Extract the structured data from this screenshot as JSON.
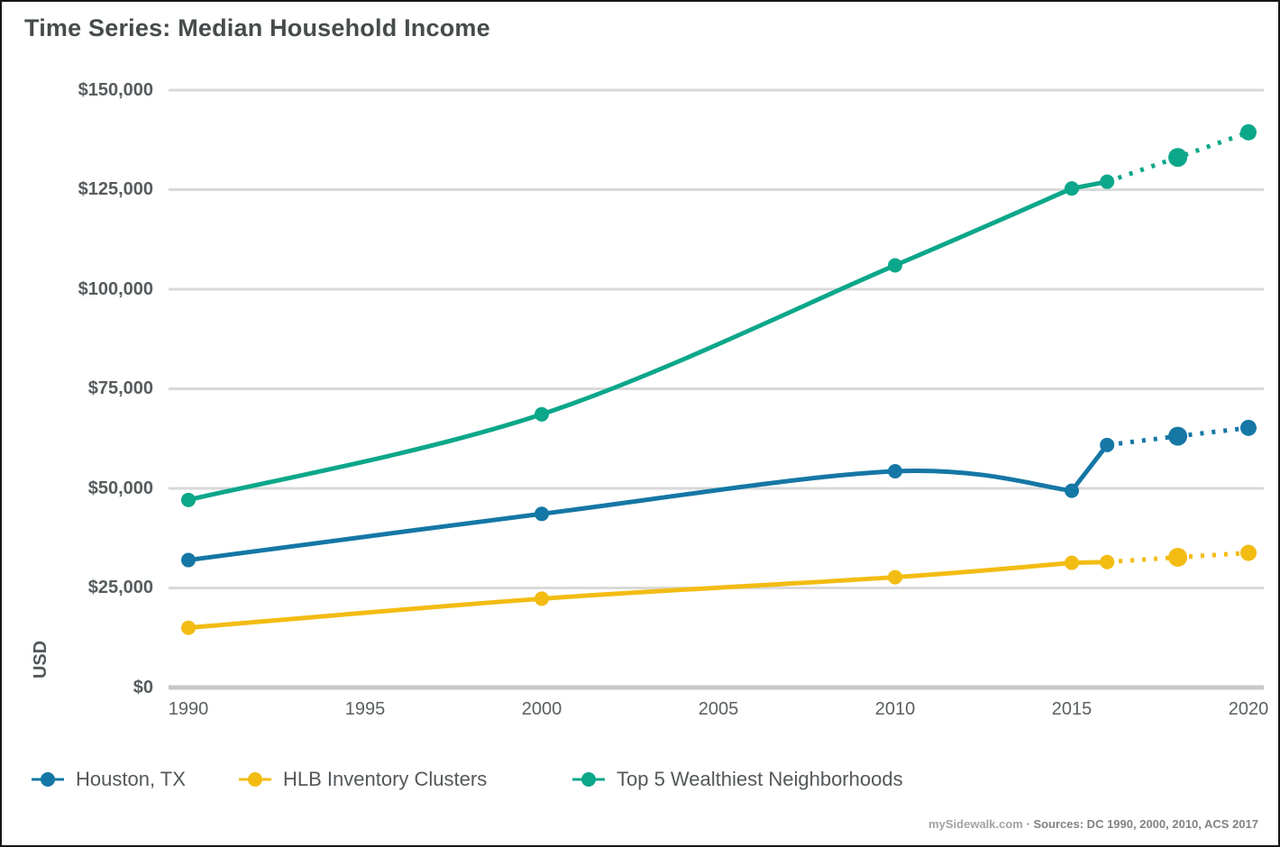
{
  "title": "Time Series: Median Household Income",
  "y_axis": {
    "title": "USD",
    "tick_labels": [
      "$150,000",
      "$125,000",
      "$100,000",
      "$75,000",
      "$50,000",
      "$25,000",
      "$0"
    ]
  },
  "x_axis": {
    "tick_labels": [
      "1990",
      "1995",
      "2000",
      "2005",
      "2010",
      "2015",
      "2020"
    ]
  },
  "legend": {
    "items": [
      {
        "label": "Houston, TX"
      },
      {
        "label": "HLB Inventory Clusters"
      },
      {
        "label": "Top 5 Wealthiest Neighborhoods"
      }
    ]
  },
  "source": {
    "brand": "mySidewalk.com",
    "separator": " · ",
    "text": "Sources: DC 1990, 2000, 2010, ACS 2017"
  },
  "colors": {
    "houston_blue": "#1577a5",
    "hlb_yellow": "#f3bc13",
    "top5_green": "#0ca78a",
    "gridline": "#d9d9d9",
    "zero_line": "#c7c7c7",
    "title_text": "#464b4c",
    "axis_text": "#565c5e"
  },
  "chart_data": {
    "type": "line",
    "title": "Time Series: Median Household Income",
    "xlabel": "",
    "ylabel": "USD",
    "ylim": [
      0,
      150000
    ],
    "y_tick_step": 25000,
    "x_ticks": [
      1990,
      1995,
      2000,
      2005,
      2010,
      2015,
      2020
    ],
    "grid": "horizontal",
    "legend_position": "bottom",
    "x": [
      1990,
      2000,
      2010,
      2015,
      2016,
      2018,
      2020
    ],
    "projection_note": "values after 2016 drawn as dotted (projected) segments",
    "series": [
      {
        "name": "Houston, TX",
        "color": "#1577a5",
        "projected_from": 2016,
        "values": [
          32000,
          43600,
          54300,
          49400,
          60900,
          63100,
          65200
        ]
      },
      {
        "name": "HLB Inventory Clusters",
        "color": "#f3bc13",
        "projected_from": 2016,
        "values": [
          15000,
          22300,
          27700,
          31300,
          31500,
          32700,
          33800
        ]
      },
      {
        "name": "Top 5 Wealthiest Neighborhoods",
        "color": "#0ca78a",
        "projected_from": 2016,
        "values": [
          47100,
          68600,
          106000,
          125300,
          127000,
          133100,
          139400
        ]
      }
    ]
  }
}
